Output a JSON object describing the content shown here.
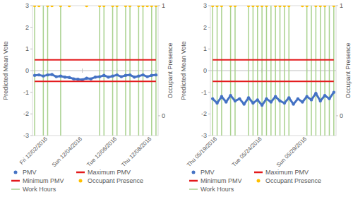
{
  "chart_data": [
    {
      "type": "line",
      "categories": [
        null,
        null,
        null,
        "Fri 12/02/2016",
        null,
        null,
        null,
        null,
        null,
        null,
        null,
        "Sun 12/04/2016",
        null,
        null,
        null,
        null,
        null,
        null,
        null,
        "Tue 12/06/2016",
        null,
        null,
        null,
        null,
        null,
        null,
        null,
        "Thu 12/08/2016",
        null
      ],
      "ylabel": "Predicted Mean Vote",
      "y2label": "Occupant Presence",
      "ylim": [
        -3,
        3
      ],
      "yticks": [
        -3,
        -2,
        -1,
        0,
        1,
        2,
        3
      ],
      "y2lim": [
        -0.18,
        1
      ],
      "y2ticks": [
        0,
        1
      ],
      "legend": "bottom",
      "series": [
        {
          "name": "PMV",
          "type": "line",
          "marker": "circle",
          "color": "#4472c4",
          "values": [
            -0.22,
            -0.2,
            -0.25,
            -0.2,
            -0.18,
            -0.28,
            -0.25,
            -0.3,
            -0.32,
            -0.38,
            -0.4,
            -0.42,
            -0.35,
            -0.38,
            -0.3,
            -0.28,
            -0.22,
            -0.3,
            -0.25,
            -0.2,
            -0.28,
            -0.22,
            -0.2,
            -0.3,
            -0.25,
            -0.2,
            -0.28,
            -0.22,
            -0.2
          ]
        },
        {
          "name": "Maximum PMV",
          "type": "line",
          "color": "#e31a1c",
          "values": [
            0.5,
            0.5,
            0.5,
            0.5,
            0.5,
            0.5,
            0.5,
            0.5,
            0.5,
            0.5,
            0.5,
            0.5,
            0.5,
            0.5,
            0.5,
            0.5,
            0.5,
            0.5,
            0.5,
            0.5,
            0.5,
            0.5,
            0.5,
            0.5,
            0.5,
            0.5,
            0.5,
            0.5,
            0.5
          ]
        },
        {
          "name": "Minimum PMV",
          "type": "line",
          "color": "#e31a1c",
          "values": [
            -0.5,
            -0.5,
            -0.5,
            -0.5,
            -0.5,
            -0.5,
            -0.5,
            -0.5,
            -0.5,
            -0.5,
            -0.5,
            -0.5,
            -0.5,
            -0.5,
            -0.5,
            -0.5,
            -0.5,
            -0.5,
            -0.5,
            -0.5,
            -0.5,
            -0.5,
            -0.5,
            -0.5,
            -0.5,
            -0.5,
            -0.5,
            -0.5,
            -0.5
          ]
        },
        {
          "name": "Occupant Presence",
          "type": "scatter",
          "marker": "circle",
          "axis": "y2",
          "color": "#ffc000",
          "values": [
            1,
            1,
            null,
            1,
            1,
            null,
            1,
            null,
            1,
            null,
            null,
            null,
            1,
            null,
            null,
            1,
            1,
            null,
            1,
            1,
            null,
            1,
            1,
            null,
            1,
            1,
            1,
            1,
            1
          ]
        },
        {
          "name": "Work Hours",
          "type": "bar",
          "axis": "y2",
          "color": "#a9d18e",
          "values": [
            1,
            null,
            1,
            1,
            null,
            null,
            1,
            null,
            null,
            null,
            null,
            null,
            null,
            null,
            null,
            1,
            1,
            null,
            1,
            1,
            null,
            1,
            1,
            null,
            1,
            1,
            null,
            1,
            1
          ]
        }
      ]
    },
    {
      "type": "line",
      "categories": [
        null,
        "Thu 05/19/2016",
        null,
        null,
        null,
        null,
        null,
        null,
        null,
        null,
        null,
        "Tue 05/24/2016",
        null,
        null,
        null,
        null,
        null,
        null,
        null,
        null,
        null,
        "Sun 05/29/2016",
        null,
        null,
        null,
        null,
        null,
        null
      ],
      "ylabel": "Predicted Mean Vote",
      "y2label": "Occupant Presence",
      "ylim": [
        -3,
        3
      ],
      "yticks": [
        -3,
        -2,
        -1,
        0,
        1,
        2,
        3
      ],
      "y2lim": [
        -0.18,
        1
      ],
      "y2ticks": [
        0,
        1
      ],
      "legend": "bottom",
      "series": [
        {
          "name": "PMV",
          "type": "line",
          "marker": "circle",
          "color": "#4472c4",
          "values": [
            -1.3,
            -1.5,
            -1.2,
            -1.45,
            -1.15,
            -1.4,
            -1.3,
            -1.55,
            -1.25,
            -1.5,
            -1.35,
            -1.6,
            -1.3,
            -1.45,
            -1.2,
            -1.4,
            -1.5,
            -1.25,
            -1.55,
            -1.3,
            -1.45,
            -1.2,
            -1.35,
            -1.05,
            -1.4,
            -1.15,
            -1.3,
            -1.0
          ]
        },
        {
          "name": "Maximum PMV",
          "type": "line",
          "color": "#e31a1c",
          "values": [
            0.5,
            0.5,
            0.5,
            0.5,
            0.5,
            0.5,
            0.5,
            0.5,
            0.5,
            0.5,
            0.5,
            0.5,
            0.5,
            0.5,
            0.5,
            0.5,
            0.5,
            0.5,
            0.5,
            0.5,
            0.5,
            0.5,
            0.5,
            0.5,
            0.5,
            0.5,
            0.5,
            0.5
          ]
        },
        {
          "name": "Minimum PMV",
          "type": "line",
          "color": "#e31a1c",
          "values": [
            -0.5,
            -0.5,
            -0.5,
            -0.5,
            -0.5,
            -0.5,
            -0.5,
            -0.5,
            -0.5,
            -0.5,
            -0.5,
            -0.5,
            -0.5,
            -0.5,
            -0.5,
            -0.5,
            -0.5,
            -0.5,
            -0.5,
            -0.5,
            -0.5,
            -0.5,
            -0.5,
            -0.5,
            -0.5,
            -0.5,
            -0.5,
            -0.5
          ]
        },
        {
          "name": "Occupant Presence",
          "type": "scatter",
          "marker": "circle",
          "axis": "y2",
          "color": "#ffc000",
          "values": [
            1,
            1,
            1,
            null,
            1,
            1,
            null,
            null,
            1,
            1,
            1,
            1,
            1,
            null,
            1,
            1,
            1,
            1,
            null,
            null,
            1,
            1,
            null,
            1,
            1,
            1,
            null,
            1
          ]
        },
        {
          "name": "Work Hours",
          "type": "bar",
          "axis": "y2",
          "color": "#a9d18e",
          "values": [
            1,
            1,
            1,
            null,
            1,
            1,
            null,
            null,
            1,
            1,
            1,
            1,
            1,
            1,
            1,
            1,
            1,
            1,
            null,
            null,
            null,
            1,
            1,
            1,
            1,
            1,
            1,
            1
          ]
        }
      ]
    }
  ]
}
